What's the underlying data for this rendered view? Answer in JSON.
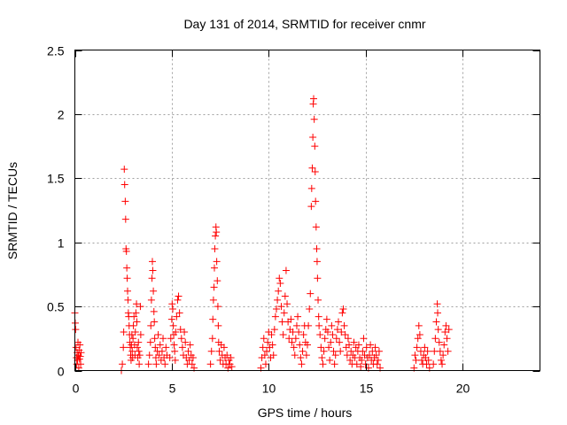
{
  "chart_data": {
    "type": "scatter",
    "title": "Day 131 of 2014, SRMTID for receiver cnmr",
    "xlabel": "GPS time / hours",
    "ylabel": "SRMTID / TECUs",
    "xlim": [
      0,
      24
    ],
    "ylim": [
      0,
      2.5
    ],
    "xticks": [
      0,
      5,
      10,
      15,
      20
    ],
    "xtick_labels": [
      "0",
      "5",
      "10",
      "15",
      "20"
    ],
    "yticks": [
      0,
      0.5,
      1,
      1.5,
      2,
      2.5
    ],
    "ytick_labels": [
      "0",
      "0.5",
      "1",
      "1.5",
      "2",
      "2.5"
    ],
    "grid": true,
    "marker": "plus",
    "series": [
      {
        "name": "SRMTID",
        "color": "#ff0000",
        "points": [
          [
            0.0,
            0.45
          ],
          [
            0.02,
            0.37
          ],
          [
            0.04,
            0.32
          ],
          [
            0.06,
            0.18
          ],
          [
            0.08,
            0.1
          ],
          [
            0.1,
            0.05
          ],
          [
            0.12,
            0.14
          ],
          [
            0.14,
            0.08
          ],
          [
            0.16,
            0.22
          ],
          [
            0.18,
            0.12
          ],
          [
            0.2,
            0.02
          ],
          [
            0.22,
            0.16
          ],
          [
            0.24,
            0.09
          ],
          [
            0.26,
            0.2
          ],
          [
            0.28,
            0.11
          ],
          [
            0.3,
            0.05
          ],
          [
            0.32,
            0.14
          ],
          [
            2.4,
            0.0
          ],
          [
            2.45,
            0.05
          ],
          [
            2.5,
            0.18
          ],
          [
            2.52,
            0.3
          ],
          [
            2.55,
            1.57
          ],
          [
            2.57,
            1.45
          ],
          [
            2.6,
            1.32
          ],
          [
            2.62,
            1.18
          ],
          [
            2.64,
            0.95
          ],
          [
            2.66,
            0.93
          ],
          [
            2.68,
            0.8
          ],
          [
            2.7,
            0.72
          ],
          [
            2.72,
            0.62
          ],
          [
            2.74,
            0.55
          ],
          [
            2.76,
            0.45
          ],
          [
            2.78,
            0.42
          ],
          [
            2.8,
            0.35
          ],
          [
            2.82,
            0.28
          ],
          [
            2.84,
            0.22
          ],
          [
            2.86,
            0.18
          ],
          [
            2.88,
            0.12
          ],
          [
            2.9,
            0.08
          ],
          [
            2.92,
            0.2
          ],
          [
            2.94,
            0.28
          ],
          [
            2.96,
            0.15
          ],
          [
            2.98,
            0.1
          ],
          [
            3.0,
            0.25
          ],
          [
            3.02,
            0.35
          ],
          [
            3.05,
            0.42
          ],
          [
            3.08,
            0.2
          ],
          [
            3.1,
            0.12
          ],
          [
            3.12,
            0.3
          ],
          [
            3.15,
            0.45
          ],
          [
            3.18,
            0.52
          ],
          [
            3.2,
            0.38
          ],
          [
            3.22,
            0.18
          ],
          [
            3.25,
            0.1
          ],
          [
            3.28,
            0.22
          ],
          [
            3.3,
            0.15
          ],
          [
            3.32,
            0.05
          ],
          [
            3.35,
            0.12
          ],
          [
            3.38,
            0.5
          ],
          [
            3.4,
            0.28
          ],
          [
            3.8,
            0.05
          ],
          [
            3.85,
            0.12
          ],
          [
            3.9,
            0.22
          ],
          [
            3.92,
            0.35
          ],
          [
            3.95,
            0.55
          ],
          [
            3.98,
            0.72
          ],
          [
            4.0,
            0.85
          ],
          [
            4.02,
            0.78
          ],
          [
            4.05,
            0.62
          ],
          [
            4.08,
            0.46
          ],
          [
            4.1,
            0.38
          ],
          [
            4.12,
            0.25
          ],
          [
            4.15,
            0.18
          ],
          [
            4.18,
            0.1
          ],
          [
            4.2,
            0.05
          ],
          [
            4.25,
            0.15
          ],
          [
            4.3,
            0.28
          ],
          [
            4.35,
            0.12
          ],
          [
            4.4,
            0.2
          ],
          [
            4.45,
            0.08
          ],
          [
            4.5,
            0.15
          ],
          [
            4.55,
            0.25
          ],
          [
            4.6,
            0.1
          ],
          [
            4.65,
            0.05
          ],
          [
            4.7,
            0.18
          ],
          [
            4.75,
            0.12
          ],
          [
            4.9,
            0.1
          ],
          [
            4.95,
            0.25
          ],
          [
            5.0,
            0.4
          ],
          [
            5.02,
            0.52
          ],
          [
            5.05,
            0.48
          ],
          [
            5.08,
            0.35
          ],
          [
            5.1,
            0.28
          ],
          [
            5.12,
            0.2
          ],
          [
            5.15,
            0.15
          ],
          [
            5.18,
            0.08
          ],
          [
            5.2,
            0.3
          ],
          [
            5.25,
            0.42
          ],
          [
            5.3,
            0.55
          ],
          [
            5.35,
            0.58
          ],
          [
            5.4,
            0.45
          ],
          [
            5.45,
            0.32
          ],
          [
            5.5,
            0.25
          ],
          [
            5.55,
            0.18
          ],
          [
            5.6,
            0.12
          ],
          [
            5.65,
            0.3
          ],
          [
            5.7,
            0.22
          ],
          [
            5.75,
            0.1
          ],
          [
            5.8,
            0.05
          ],
          [
            5.85,
            0.15
          ],
          [
            5.9,
            0.08
          ],
          [
            5.95,
            0.2
          ],
          [
            6.0,
            0.12
          ],
          [
            6.05,
            0.05
          ],
          [
            6.1,
            0.1
          ],
          [
            6.15,
            0.02
          ],
          [
            7.0,
            0.05
          ],
          [
            7.05,
            0.15
          ],
          [
            7.1,
            0.25
          ],
          [
            7.12,
            0.4
          ],
          [
            7.15,
            0.55
          ],
          [
            7.18,
            0.65
          ],
          [
            7.2,
            0.8
          ],
          [
            7.22,
            0.95
          ],
          [
            7.25,
            1.05
          ],
          [
            7.28,
            1.12
          ],
          [
            7.3,
            1.08
          ],
          [
            7.32,
            0.85
          ],
          [
            7.35,
            0.7
          ],
          [
            7.38,
            0.5
          ],
          [
            7.4,
            0.35
          ],
          [
            7.42,
            0.22
          ],
          [
            7.45,
            0.15
          ],
          [
            7.5,
            0.08
          ],
          [
            7.55,
            0.2
          ],
          [
            7.6,
            0.12
          ],
          [
            7.65,
            0.05
          ],
          [
            7.7,
            0.18
          ],
          [
            7.75,
            0.1
          ],
          [
            7.8,
            0.05
          ],
          [
            7.85,
            0.12
          ],
          [
            7.9,
            0.02
          ],
          [
            7.95,
            0.08
          ],
          [
            8.0,
            0.05
          ],
          [
            8.05,
            0.1
          ],
          [
            8.1,
            0.03
          ],
          [
            9.6,
            0.02
          ],
          [
            9.65,
            0.1
          ],
          [
            9.7,
            0.18
          ],
          [
            9.75,
            0.25
          ],
          [
            9.8,
            0.12
          ],
          [
            9.85,
            0.05
          ],
          [
            9.9,
            0.15
          ],
          [
            9.95,
            0.22
          ],
          [
            10.0,
            0.3
          ],
          [
            10.05,
            0.18
          ],
          [
            10.1,
            0.1
          ],
          [
            10.15,
            0.28
          ],
          [
            10.2,
            0.2
          ],
          [
            10.25,
            0.12
          ],
          [
            10.3,
            0.32
          ],
          [
            10.35,
            0.42
          ],
          [
            10.4,
            0.48
          ],
          [
            10.45,
            0.55
          ],
          [
            10.5,
            0.62
          ],
          [
            10.55,
            0.72
          ],
          [
            10.6,
            0.68
          ],
          [
            10.65,
            0.5
          ],
          [
            10.7,
            0.38
          ],
          [
            10.75,
            0.28
          ],
          [
            10.8,
            0.45
          ],
          [
            10.85,
            0.58
          ],
          [
            10.9,
            0.78
          ],
          [
            10.95,
            0.52
          ],
          [
            11.0,
            0.38
          ],
          [
            11.05,
            0.25
          ],
          [
            11.1,
            0.32
          ],
          [
            11.15,
            0.4
          ],
          [
            11.2,
            0.22
          ],
          [
            11.25,
            0.3
          ],
          [
            11.3,
            0.18
          ],
          [
            11.35,
            0.12
          ],
          [
            11.4,
            0.25
          ],
          [
            11.45,
            0.35
          ],
          [
            11.5,
            0.42
          ],
          [
            11.55,
            0.3
          ],
          [
            11.6,
            0.2
          ],
          [
            11.65,
            0.1
          ],
          [
            11.7,
            0.05
          ],
          [
            11.75,
            0.15
          ],
          [
            11.8,
            0.28
          ],
          [
            11.85,
            0.35
          ],
          [
            11.9,
            0.22
          ],
          [
            11.95,
            0.12
          ],
          [
            12.0,
            0.2
          ],
          [
            12.05,
            0.35
          ],
          [
            12.1,
            0.48
          ],
          [
            12.15,
            0.6
          ],
          [
            12.2,
            1.28
          ],
          [
            12.22,
            1.42
          ],
          [
            12.25,
            1.58
          ],
          [
            12.28,
            1.82
          ],
          [
            12.3,
            2.08
          ],
          [
            12.32,
            2.12
          ],
          [
            12.35,
            1.96
          ],
          [
            12.38,
            1.75
          ],
          [
            12.4,
            1.55
          ],
          [
            12.42,
            1.32
          ],
          [
            12.45,
            1.12
          ],
          [
            12.48,
            0.95
          ],
          [
            12.5,
            0.85
          ],
          [
            12.52,
            0.72
          ],
          [
            12.55,
            0.55
          ],
          [
            12.58,
            0.42
          ],
          [
            12.6,
            0.35
          ],
          [
            12.65,
            0.28
          ],
          [
            12.7,
            0.18
          ],
          [
            12.75,
            0.1
          ],
          [
            12.8,
            0.05
          ],
          [
            12.85,
            0.15
          ],
          [
            12.9,
            0.25
          ],
          [
            12.95,
            0.32
          ],
          [
            13.0,
            0.4
          ],
          [
            13.05,
            0.3
          ],
          [
            13.1,
            0.18
          ],
          [
            13.15,
            0.08
          ],
          [
            13.2,
            0.22
          ],
          [
            13.25,
            0.35
          ],
          [
            13.3,
            0.28
          ],
          [
            13.35,
            0.15
          ],
          [
            13.4,
            0.05
          ],
          [
            13.45,
            0.12
          ],
          [
            13.5,
            0.25
          ],
          [
            13.55,
            0.32
          ],
          [
            13.6,
            0.38
          ],
          [
            13.65,
            0.22
          ],
          [
            13.7,
            0.15
          ],
          [
            13.75,
            0.3
          ],
          [
            13.8,
            0.45
          ],
          [
            13.85,
            0.48
          ],
          [
            13.9,
            0.35
          ],
          [
            13.95,
            0.28
          ],
          [
            14.0,
            0.18
          ],
          [
            14.05,
            0.12
          ],
          [
            14.1,
            0.25
          ],
          [
            14.15,
            0.2
          ],
          [
            14.2,
            0.08
          ],
          [
            14.25,
            0.15
          ],
          [
            14.3,
            0.05
          ],
          [
            14.35,
            0.12
          ],
          [
            14.4,
            0.22
          ],
          [
            14.45,
            0.1
          ],
          [
            14.5,
            0.18
          ],
          [
            14.55,
            0.05
          ],
          [
            14.6,
            0.15
          ],
          [
            14.65,
            0.2
          ],
          [
            14.7,
            0.1
          ],
          [
            14.75,
            0.03
          ],
          [
            14.8,
            0.08
          ],
          [
            14.85,
            0.15
          ],
          [
            14.9,
            0.25
          ],
          [
            14.95,
            0.12
          ],
          [
            15.0,
            0.05
          ],
          [
            15.05,
            0.18
          ],
          [
            15.1,
            0.1
          ],
          [
            15.15,
            0.02
          ],
          [
            15.2,
            0.12
          ],
          [
            15.25,
            0.2
          ],
          [
            15.3,
            0.08
          ],
          [
            15.35,
            0.15
          ],
          [
            15.4,
            0.05
          ],
          [
            15.45,
            0.1
          ],
          [
            15.5,
            0.18
          ],
          [
            15.55,
            0.12
          ],
          [
            15.6,
            0.05
          ],
          [
            15.65,
            0.08
          ],
          [
            15.7,
            0.15
          ],
          [
            15.75,
            0.02
          ],
          [
            17.5,
            0.02
          ],
          [
            17.55,
            0.12
          ],
          [
            17.6,
            0.08
          ],
          [
            17.65,
            0.18
          ],
          [
            17.7,
            0.25
          ],
          [
            17.75,
            0.35
          ],
          [
            17.8,
            0.28
          ],
          [
            17.85,
            0.15
          ],
          [
            17.9,
            0.08
          ],
          [
            17.95,
            0.05
          ],
          [
            18.0,
            0.12
          ],
          [
            18.05,
            0.18
          ],
          [
            18.1,
            0.1
          ],
          [
            18.15,
            0.05
          ],
          [
            18.2,
            0.15
          ],
          [
            18.25,
            0.08
          ],
          [
            18.3,
            0.02
          ],
          [
            18.5,
            0.05
          ],
          [
            18.55,
            0.15
          ],
          [
            18.6,
            0.25
          ],
          [
            18.65,
            0.38
          ],
          [
            18.7,
            0.52
          ],
          [
            18.72,
            0.45
          ],
          [
            18.75,
            0.32
          ],
          [
            18.8,
            0.22
          ],
          [
            18.85,
            0.15
          ],
          [
            18.9,
            0.08
          ],
          [
            18.95,
            0.05
          ],
          [
            19.0,
            0.12
          ],
          [
            19.05,
            0.2
          ],
          [
            19.1,
            0.3
          ],
          [
            19.15,
            0.35
          ],
          [
            19.2,
            0.25
          ],
          [
            19.25,
            0.15
          ],
          [
            19.3,
            0.32
          ]
        ]
      }
    ]
  }
}
